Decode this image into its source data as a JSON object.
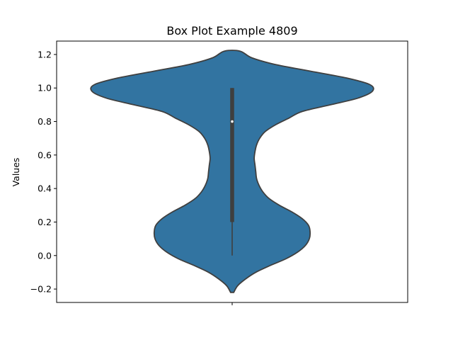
{
  "chart_data": {
    "type": "violin",
    "title": "Box Plot Example 4809",
    "xlabel": "",
    "ylabel": "Values",
    "ylim": [
      -0.28,
      1.28
    ],
    "yticks": [
      -0.2,
      0.0,
      0.2,
      0.4,
      0.6,
      0.8,
      1.0,
      1.2
    ],
    "ytick_labels": [
      "−0.2",
      "0.0",
      "0.2",
      "0.4",
      "0.6",
      "0.8",
      "1.0",
      "1.2"
    ],
    "grid": false,
    "violin": {
      "color": "#3274a1",
      "edge_color": "#3f3f3f",
      "range": [
        -0.22,
        1.22
      ],
      "density": [
        [
          -0.22,
          0.02
        ],
        [
          -0.18,
          0.07
        ],
        [
          -0.14,
          0.17
        ],
        [
          -0.1,
          0.3
        ],
        [
          -0.06,
          0.48
        ],
        [
          -0.02,
          0.68
        ],
        [
          0.02,
          0.83
        ],
        [
          0.06,
          0.93
        ],
        [
          0.1,
          0.98
        ],
        [
          0.14,
          0.99
        ],
        [
          0.18,
          0.97
        ],
        [
          0.22,
          0.89
        ],
        [
          0.26,
          0.76
        ],
        [
          0.3,
          0.6
        ],
        [
          0.34,
          0.47
        ],
        [
          0.38,
          0.39
        ],
        [
          0.42,
          0.34
        ],
        [
          0.46,
          0.31
        ],
        [
          0.5,
          0.3
        ],
        [
          0.54,
          0.29
        ],
        [
          0.58,
          0.28
        ],
        [
          0.62,
          0.29
        ],
        [
          0.66,
          0.31
        ],
        [
          0.7,
          0.35
        ],
        [
          0.74,
          0.42
        ],
        [
          0.78,
          0.55
        ],
        [
          0.82,
          0.72
        ],
        [
          0.86,
          0.89
        ],
        [
          0.9,
          1.25
        ],
        [
          0.94,
          1.6
        ],
        [
          0.98,
          1.78
        ],
        [
          1.02,
          1.75
        ],
        [
          1.06,
          1.45
        ],
        [
          1.1,
          1.0
        ],
        [
          1.14,
          0.55
        ],
        [
          1.18,
          0.25
        ],
        [
          1.22,
          0.1
        ]
      ],
      "box": {
        "q1": 0.2,
        "median": 0.8,
        "q3": 1.0,
        "whisker_low": 0.0,
        "whisker_high": 1.0
      }
    }
  }
}
